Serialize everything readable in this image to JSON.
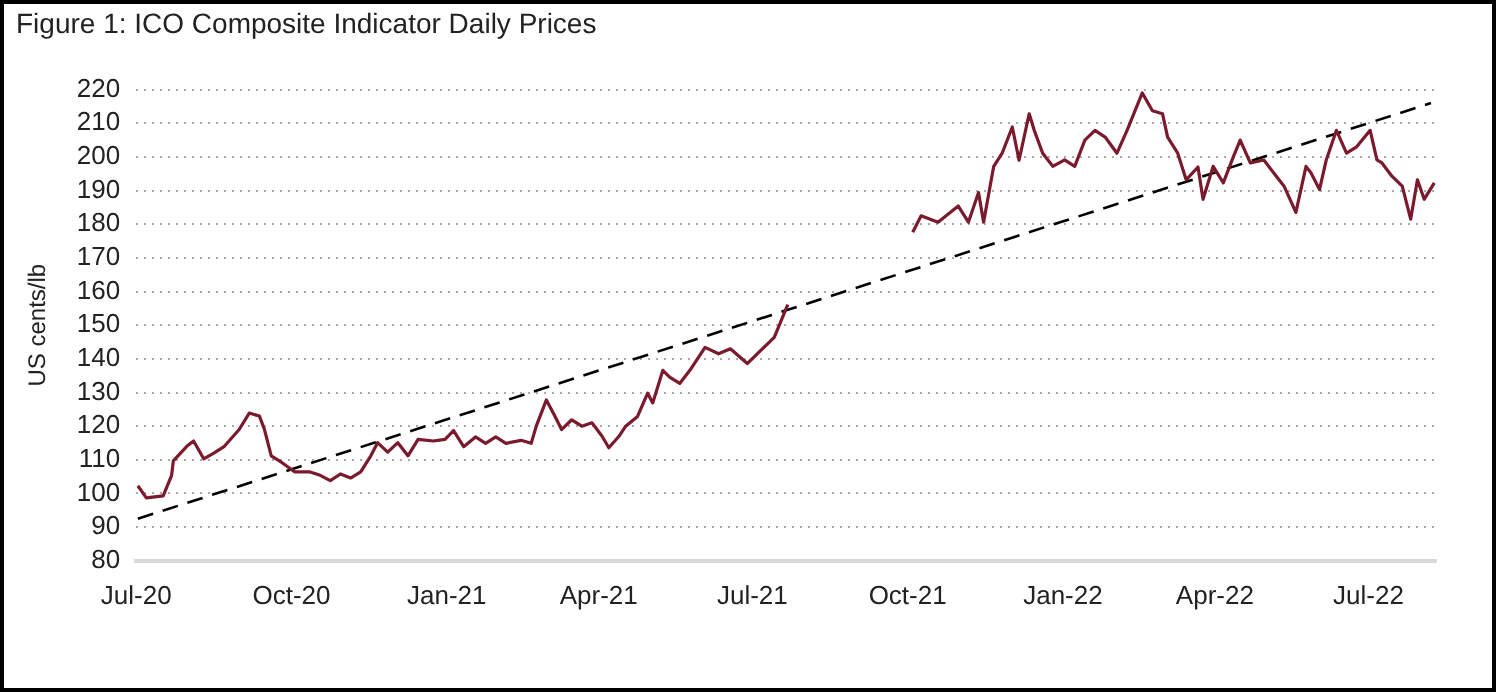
{
  "chart_data": {
    "type": "line",
    "title": "Figure 1: ICO Composite Indicator Daily Prices",
    "ylabel": "US cents/lb",
    "xlim": [
      "2020-07-01",
      "2022-08-10"
    ],
    "xticks": [
      {
        "value": "2020-07-01",
        "label": "Jul-20"
      },
      {
        "value": "2020-10-01",
        "label": "Oct-20"
      },
      {
        "value": "2021-01-01",
        "label": "Jan-21"
      },
      {
        "value": "2021-04-01",
        "label": "Apr-21"
      },
      {
        "value": "2021-07-01",
        "label": "Jul-21"
      },
      {
        "value": "2021-10-01",
        "label": "Oct-21"
      },
      {
        "value": "2022-01-01",
        "label": "Jan-22"
      },
      {
        "value": "2022-04-01",
        "label": "Apr-22"
      },
      {
        "value": "2022-07-01",
        "label": "Jul-22"
      }
    ],
    "ylim": [
      80,
      220
    ],
    "yticks": [
      80,
      90,
      100,
      110,
      120,
      130,
      140,
      150,
      160,
      170,
      180,
      190,
      200,
      210,
      220
    ],
    "grid": "y",
    "legend": false,
    "series": [
      {
        "color": "#7a1a2c",
        "line_style": "solid",
        "x": [
          "2020-07-02",
          "2020-07-07",
          "2020-07-17",
          "2020-07-22",
          "2020-07-23",
          "2020-07-31",
          "2020-08-04",
          "2020-08-10",
          "2020-08-16",
          "2020-08-22",
          "2020-08-31",
          "2020-09-06",
          "2020-09-12",
          "2020-09-15",
          "2020-09-19",
          "2020-09-25",
          "2020-10-03",
          "2020-10-12",
          "2020-10-18",
          "2020-10-24",
          "2020-10-30",
          "2020-11-05",
          "2020-11-11",
          "2020-11-17",
          "2020-11-21",
          "2020-11-27",
          "2020-12-03",
          "2020-12-09",
          "2020-12-15",
          "2020-12-24",
          "2020-12-31",
          "2021-01-05",
          "2021-01-11",
          "2021-01-18",
          "2021-01-24",
          "2021-01-30",
          "2021-02-05",
          "2021-02-14",
          "2021-02-20",
          "2021-02-23",
          "2021-03-01",
          "2021-03-06",
          "2021-03-10",
          "2021-03-16",
          "2021-03-22",
          "2021-03-28",
          "2021-04-03",
          "2021-04-07",
          "2021-04-13",
          "2021-04-17",
          "2021-04-24",
          "2021-04-30",
          "2021-05-03",
          "2021-05-09",
          "2021-05-13",
          "2021-05-19",
          "2021-05-25",
          "2021-06-03",
          "2021-06-11",
          "2021-06-18",
          "2021-06-28",
          "2021-07-14",
          "2021-07-22",
          "2021-08-15",
          "2021-10-04",
          "2021-10-09",
          "2021-10-19",
          "2021-10-31",
          "2021-11-06",
          "2021-11-12",
          "2021-11-15",
          "2021-11-21",
          "2021-11-26",
          "2021-12-02",
          "2021-12-06",
          "2021-12-12",
          "2021-12-15",
          "2021-12-20",
          "2021-12-26",
          "2022-01-02",
          "2022-01-08",
          "2022-01-14",
          "2022-01-20",
          "2022-01-26",
          "2022-02-02",
          "2022-02-08",
          "2022-02-17",
          "2022-02-23",
          "2022-03-01",
          "2022-03-04",
          "2022-03-10",
          "2022-03-15",
          "2022-03-22",
          "2022-03-25",
          "2022-03-31",
          "2022-04-06",
          "2022-04-12",
          "2022-04-16",
          "2022-04-22",
          "2022-04-30",
          "2022-05-09",
          "2022-05-12",
          "2022-05-19",
          "2022-05-25",
          "2022-05-28",
          "2022-06-02",
          "2022-06-06",
          "2022-06-12",
          "2022-06-18",
          "2022-06-24",
          "2022-07-02",
          "2022-07-06",
          "2022-07-09",
          "2022-07-15",
          "2022-07-21",
          "2022-07-26",
          "2022-07-30",
          "2022-08-03",
          "2022-08-09"
        ],
        "values": [
          102.3,
          98.7,
          99.3,
          105.4,
          109.7,
          114,
          115.6,
          110.3,
          112,
          113.9,
          119,
          123.9,
          123,
          119,
          111.2,
          109.3,
          106.4,
          106.4,
          105.4,
          103.8,
          105.8,
          104.6,
          106.4,
          111.2,
          115.1,
          112.3,
          115.1,
          111.2,
          116.1,
          115.6,
          116.1,
          118.7,
          113.9,
          116.8,
          114.9,
          116.8,
          114.9,
          115.8,
          114.9,
          120,
          127.8,
          123,
          119,
          121.9,
          120,
          121,
          117,
          113.6,
          117,
          120,
          122.9,
          129.8,
          126.9,
          136.6,
          134.6,
          132.7,
          136.6,
          143.4,
          141.5,
          143,
          138.6,
          146.4,
          156.1,
          null,
          177.6,
          182.5,
          180.6,
          185.4,
          180.6,
          189.4,
          180.6,
          197.2,
          201.1,
          208.9,
          199,
          212.8,
          207.9,
          201.1,
          197.2,
          199.1,
          197.2,
          205,
          207.9,
          205.9,
          201.1,
          207.9,
          219,
          213.7,
          212.8,
          205.9,
          201.1,
          193.2,
          197,
          187.4,
          197.2,
          192.3,
          200.1,
          205,
          198.2,
          199.1,
          193.2,
          191.3,
          183.5,
          197.2,
          195.2,
          190.3,
          199.1,
          207.9,
          201.1,
          203,
          207.9,
          199.1,
          198.2,
          194.2,
          191.3,
          181.5,
          193.2,
          187.4,
          192.3
        ]
      },
      {
        "type": "line",
        "color": "#000000",
        "line_style": "dashed",
        "x": [
          "2020-07-02",
          "2022-08-07"
        ],
        "values": [
          92.5,
          216
        ]
      }
    ]
  }
}
